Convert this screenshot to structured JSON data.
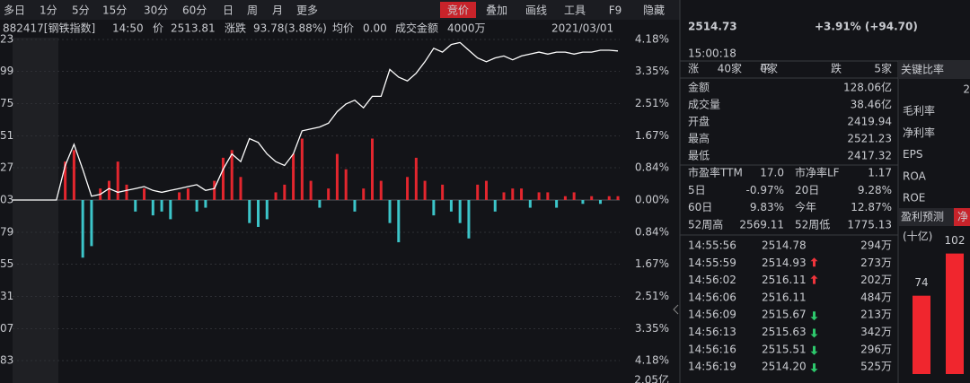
{
  "toolbar": {
    "periods": [
      "多日",
      "1分",
      "5分",
      "15分",
      "30分",
      "60分",
      "日",
      "周",
      "月",
      "更多"
    ],
    "tools": [
      "竞价",
      "叠加",
      "画线",
      "工具",
      "F9",
      "隐藏"
    ]
  },
  "info": {
    "code": "882417[钢铁指数]",
    "time": "14:50",
    "price_label": "价",
    "price": "2513.81",
    "change_label": "涨跌",
    "change": "93.78(3.88%)",
    "avg_label": "均价",
    "avg": "0.00",
    "amount_label": "成交金额",
    "amount": "4000万",
    "date": "2021/03/01"
  },
  "chart_data": {
    "type": "line",
    "x": [
      0,
      1,
      2,
      3,
      4,
      5,
      6,
      7,
      8,
      9,
      10,
      11,
      12,
      13,
      14,
      15,
      16,
      17,
      18,
      19,
      20,
      21,
      22,
      23,
      24,
      25,
      26,
      27,
      28,
      29,
      30,
      31,
      32,
      33,
      34,
      35,
      36,
      37,
      38,
      39,
      40,
      41,
      42,
      43,
      44,
      45,
      46,
      47,
      48,
      49,
      50,
      51,
      52,
      53,
      54,
      55,
      56,
      57,
      58,
      59,
      60,
      61,
      62,
      63,
      64,
      65,
      66,
      67,
      68,
      69
    ],
    "values": [
      0,
      0,
      0,
      0,
      0,
      0,
      0.9,
      1.45,
      0.8,
      0.1,
      0.15,
      0.3,
      0.2,
      0.25,
      0.3,
      0.35,
      0.25,
      0.2,
      0.25,
      0.3,
      0.35,
      0.4,
      0.25,
      0.3,
      0.8,
      1.2,
      1.0,
      1.6,
      1.5,
      1.2,
      1.0,
      0.9,
      1.2,
      1.8,
      1.85,
      1.9,
      2.0,
      2.3,
      2.5,
      2.6,
      2.4,
      2.7,
      2.7,
      3.4,
      3.2,
      3.1,
      3.3,
      3.6,
      3.95,
      3.85,
      4.05,
      4.1,
      3.9,
      3.7,
      3.6,
      3.7,
      3.75,
      3.65,
      3.75,
      3.8,
      3.85,
      3.8,
      3.85,
      3.85,
      3.8,
      3.85,
      3.85,
      3.9,
      3.9,
      3.88
    ],
    "bars": [
      0,
      0,
      0,
      0,
      0,
      0,
      1.0,
      1.3,
      -1.5,
      -1.2,
      0.3,
      0.5,
      1.0,
      0.4,
      -0.3,
      0.3,
      -0.4,
      -0.3,
      -0.5,
      0.2,
      0.3,
      -0.3,
      -0.2,
      0.5,
      1.1,
      1.3,
      0.6,
      -0.6,
      -0.7,
      -0.5,
      0.2,
      0.4,
      1.2,
      1.6,
      0.5,
      -0.2,
      0.3,
      1.2,
      0.8,
      -0.3,
      0.3,
      1.6,
      0.5,
      -0.6,
      -1.1,
      0.6,
      1.1,
      0.5,
      -0.4,
      0.4,
      -0.3,
      -0.6,
      -1.0,
      0.4,
      0.5,
      -0.3,
      0.2,
      0.3,
      0.3,
      -0.2,
      0.2,
      0.2,
      -0.2,
      0.1,
      0.2,
      -0.1,
      0.1,
      -0.1,
      0.1,
      0.1
    ],
    "xlim": [
      0,
      69
    ],
    "ylim": [
      -4.18,
      4.18
    ],
    "yticks": [
      {
        "value": 4.18,
        "label": "4.18%"
      },
      {
        "value": 3.35,
        "label": "3.35%"
      },
      {
        "value": 2.51,
        "label": "2.51%"
      },
      {
        "value": 1.67,
        "label": "1.67%"
      },
      {
        "value": 0.84,
        "label": "0.84%"
      },
      {
        "value": 0,
        "label": "0.00%"
      },
      {
        "value": -0.84,
        "label": "0.84%"
      },
      {
        "value": -1.67,
        "label": "1.67%"
      },
      {
        "value": -2.51,
        "label": "2.51%"
      },
      {
        "value": -3.35,
        "label": "3.35%"
      },
      {
        "value": -4.18,
        "label": "4.18%"
      }
    ],
    "price_labels": [
      "23",
      "99",
      "75",
      "51",
      "27",
      "03",
      "79",
      "55",
      "31",
      "07",
      "83"
    ],
    "volume_label": "2.05亿",
    "line_color": "#ffffff",
    "up_color": "#e3262e",
    "down_color": "#3cc5c9",
    "grid": true
  },
  "quote": {
    "price": "2514.73",
    "change": "+3.91% (+94.70)",
    "time": "15:00:18",
    "breadth": [
      {
        "label": "涨",
        "value": "40家",
        "tone": "up"
      },
      {
        "label": "平",
        "value": "0家",
        "tone": "flat"
      },
      {
        "label": "跌",
        "value": "5家",
        "tone": "down"
      }
    ]
  },
  "stats": [
    {
      "label": "金额",
      "value": "128.06亿",
      "tone": "flat"
    },
    {
      "label": "成交量",
      "value": "38.46亿",
      "tone": "flat"
    },
    {
      "label": "开盘",
      "value": "2419.94",
      "tone": "down"
    },
    {
      "label": "最高",
      "value": "2521.23",
      "tone": "up"
    },
    {
      "label": "最低",
      "value": "2417.32",
      "tone": "down"
    }
  ],
  "stats2": [
    [
      {
        "text": "市盈率TTM",
        "tone": "label"
      },
      {
        "text": "17.0",
        "tone": "flat"
      },
      {
        "text": "市净率LF",
        "tone": "label"
      },
      {
        "text": "1.17",
        "tone": "flat"
      }
    ],
    [
      {
        "text": "5日",
        "tone": "label"
      },
      {
        "text": "-0.97%",
        "tone": "down"
      },
      {
        "text": "20日",
        "tone": "label"
      },
      {
        "text": "9.28%",
        "tone": "up"
      }
    ],
    [
      {
        "text": "60日",
        "tone": "label"
      },
      {
        "text": "9.83%",
        "tone": "up"
      },
      {
        "text": "今年",
        "tone": "label"
      },
      {
        "text": "12.87%",
        "tone": "up"
      }
    ],
    [
      {
        "text": "52周高",
        "tone": "label"
      },
      {
        "text": "2569.11",
        "tone": "flat"
      },
      {
        "text": "52周低",
        "tone": "label"
      },
      {
        "text": "1775.13",
        "tone": "flat"
      }
    ]
  ],
  "trades": [
    {
      "time": "14:55:56",
      "price": "2514.78",
      "dir": "none",
      "volume": "294万"
    },
    {
      "time": "14:55:59",
      "price": "2514.93",
      "dir": "up",
      "volume": "273万"
    },
    {
      "time": "14:56:02",
      "price": "2516.11",
      "dir": "up",
      "volume": "202万"
    },
    {
      "time": "14:56:06",
      "price": "2516.11",
      "dir": "none",
      "volume": "484万"
    },
    {
      "time": "14:56:09",
      "price": "2515.67",
      "dir": "down",
      "volume": "213万"
    },
    {
      "time": "14:56:13",
      "price": "2515.63",
      "dir": "down",
      "volume": "342万"
    },
    {
      "time": "14:56:16",
      "price": "2515.51",
      "dir": "down",
      "volume": "296万"
    },
    {
      "time": "14:56:19",
      "price": "2514.20",
      "dir": "down",
      "volume": "525万"
    }
  ],
  "ratios": {
    "title": "关键比率",
    "value": "2",
    "items": [
      "毛利率",
      "净利率",
      "EPS",
      "ROA",
      "ROE"
    ]
  },
  "forecast": {
    "tabs": [
      "盈利预测",
      "净"
    ],
    "unit": "(十亿)",
    "values": [
      74,
      102
    ]
  }
}
